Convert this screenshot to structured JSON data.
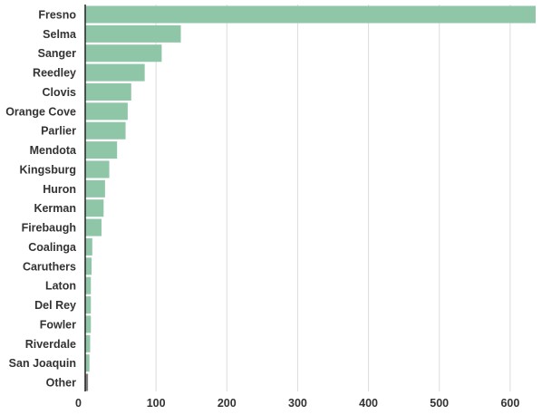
{
  "chart_data": {
    "type": "bar",
    "orientation": "horizontal",
    "categories": [
      "Fresno",
      "Selma",
      "Sanger",
      "Reedley",
      "Clovis",
      "Orange Cove",
      "Parlier",
      "Mendota",
      "Kingsburg",
      "Huron",
      "Kerman",
      "Firebaugh",
      "Coalinga",
      "Caruthers",
      "Laton",
      "Del Rey",
      "Fowler",
      "Riverdale",
      "San Joaquin",
      "Other"
    ],
    "values": [
      636,
      135,
      108,
      84,
      65,
      60,
      57,
      45,
      34,
      28,
      26,
      23,
      10,
      9,
      8,
      8,
      8,
      7,
      6,
      4
    ],
    "bar_colors": [
      "#8fc6a8",
      "#8fc6a8",
      "#8fc6a8",
      "#8fc6a8",
      "#8fc6a8",
      "#8fc6a8",
      "#8fc6a8",
      "#8fc6a8",
      "#8fc6a8",
      "#8fc6a8",
      "#8fc6a8",
      "#8fc6a8",
      "#8fc6a8",
      "#8fc6a8",
      "#8fc6a8",
      "#8fc6a8",
      "#8fc6a8",
      "#8fc6a8",
      "#8fc6a8",
      "#7f7f7f"
    ],
    "xlim": [
      0,
      636
    ],
    "xticks": [
      0,
      100,
      200,
      300,
      400,
      500,
      600
    ],
    "title": "",
    "xlabel": "",
    "ylabel": "",
    "grid": "vertical",
    "legend": "none"
  }
}
